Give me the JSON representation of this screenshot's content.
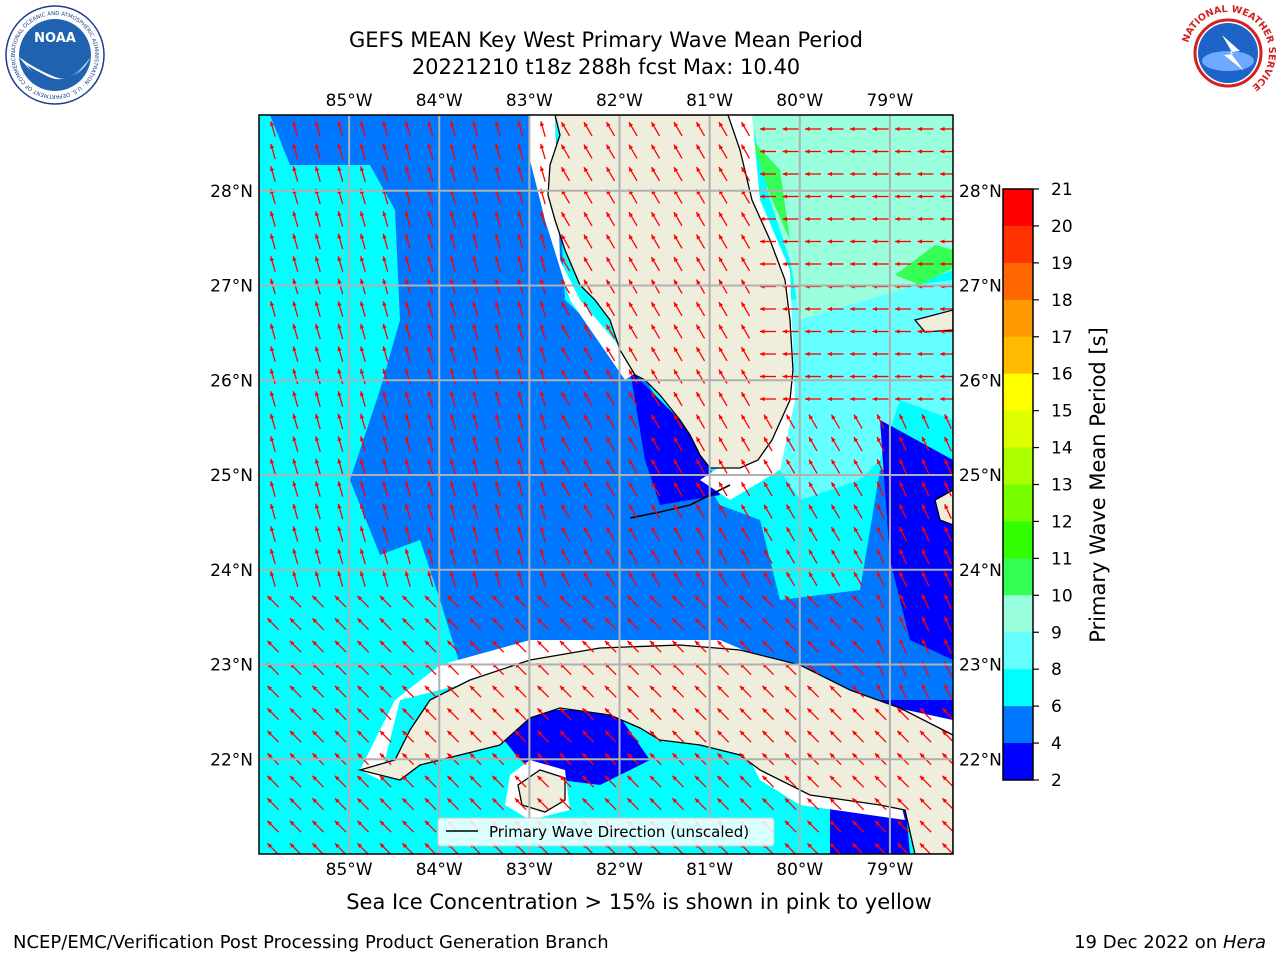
{
  "title": {
    "line1": "GEFS MEAN Key West Primary Wave Mean Period",
    "line2": "20221210 t18z 288h fcst   Max: 10.40"
  },
  "logos": {
    "left": "noaa-logo",
    "right": "nws-logo",
    "left_ring_text": "NATIONAL OCEANIC AND ATMOSPHERIC ADMINISTRATION · U.S. DEPARTMENT OF COMMERCE",
    "left_center_text": "NOAA",
    "right_ring_text": "NATIONAL WEATHER SERVICE"
  },
  "map": {
    "lon_labels": [
      "85°W",
      "84°W",
      "83°W",
      "82°W",
      "81°W",
      "80°W",
      "79°W"
    ],
    "lat_labels": [
      "28°N",
      "27°N",
      "26°N",
      "25°N",
      "24°N",
      "23°N",
      "22°N"
    ],
    "lon_range": [
      -86.0,
      -78.3
    ],
    "lat_range": [
      21.0,
      28.8
    ],
    "grid": true,
    "land_color": "#efeddc",
    "arrow_color": "#ff0000"
  },
  "legend": {
    "label": "Primary Wave Direction (unscaled)",
    "placement": "lower-center"
  },
  "colorbar": {
    "label": "Primary Wave Mean Period [s]",
    "ticks": [
      "21",
      "20",
      "19",
      "18",
      "17",
      "16",
      "15",
      "14",
      "13",
      "12",
      "11",
      "10",
      "9",
      "8",
      "6",
      "4",
      "2"
    ],
    "colors": [
      "#ff0000",
      "#ff3300",
      "#ff6600",
      "#ff9900",
      "#ffbb00",
      "#ffff00",
      "#ddff00",
      "#aaff00",
      "#77ff00",
      "#33ff00",
      "#33ff55",
      "#99ffdd",
      "#66ffff",
      "#00ffff",
      "#0077ff",
      "#0000ff"
    ]
  },
  "notes": {
    "sea_ice": "Sea Ice Concentration > 15% is shown in pink to yellow",
    "footer_left": "NCEP/EMC/Verification Post Processing Product Generation Branch",
    "footer_date": "19 Dec 2022 on ",
    "footer_host": "Hera"
  }
}
